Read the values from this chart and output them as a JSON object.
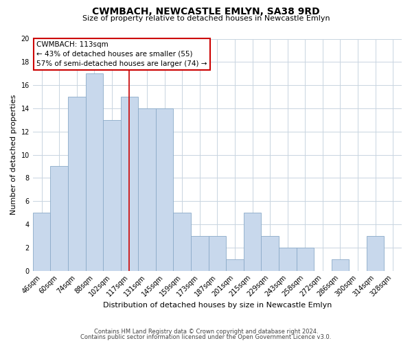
{
  "title": "CWMBACH, NEWCASTLE EMLYN, SA38 9RD",
  "subtitle": "Size of property relative to detached houses in Newcastle Emlyn",
  "xlabel": "Distribution of detached houses by size in Newcastle Emlyn",
  "ylabel": "Number of detached properties",
  "bar_color": "#c8d8ec",
  "bar_edgecolor": "#8aaac8",
  "categories": [
    "46sqm",
    "60sqm",
    "74sqm",
    "88sqm",
    "102sqm",
    "117sqm",
    "131sqm",
    "145sqm",
    "159sqm",
    "173sqm",
    "187sqm",
    "201sqm",
    "215sqm",
    "229sqm",
    "243sqm",
    "258sqm",
    "272sqm",
    "286sqm",
    "300sqm",
    "314sqm",
    "328sqm"
  ],
  "values": [
    5,
    9,
    15,
    17,
    13,
    15,
    14,
    14,
    5,
    3,
    3,
    1,
    5,
    3,
    2,
    2,
    0,
    1,
    0,
    3,
    0
  ],
  "ylim": [
    0,
    20
  ],
  "yticks": [
    0,
    2,
    4,
    6,
    8,
    10,
    12,
    14,
    16,
    18,
    20
  ],
  "vline_color": "#cc0000",
  "annotation_title": "CWMBACH: 113sqm",
  "annotation_line1": "← 43% of detached houses are smaller (55)",
  "annotation_line2": "57% of semi-detached houses are larger (74) →",
  "footer1": "Contains HM Land Registry data © Crown copyright and database right 2024.",
  "footer2": "Contains public sector information licensed under the Open Government Licence v3.0.",
  "background_color": "#ffffff",
  "grid_color": "#c8d4e0",
  "title_fontsize": 10,
  "subtitle_fontsize": 8,
  "ylabel_fontsize": 8,
  "xlabel_fontsize": 8,
  "tick_fontsize": 7,
  "annotation_fontsize": 7.5,
  "footer_fontsize": 6
}
